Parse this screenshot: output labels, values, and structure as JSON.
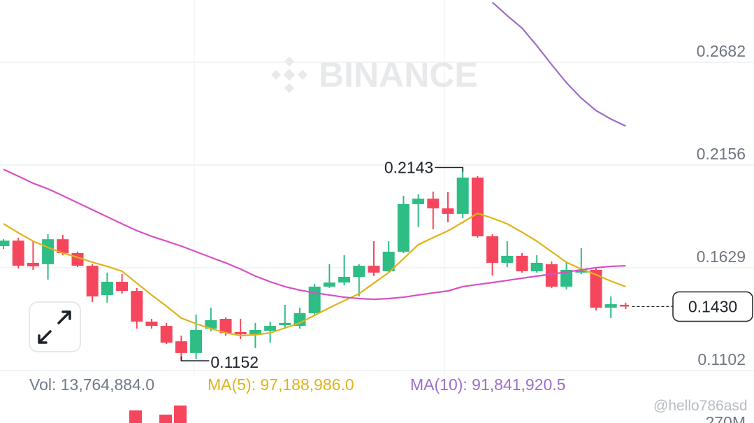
{
  "chart_data": {
    "type": "candlestick",
    "watermark": "BINANCE",
    "up_color": "#2ebd85",
    "down_color": "#f6465d",
    "open": [
      0.174,
      0.1768,
      0.1654,
      0.1647,
      0.1775,
      0.1704,
      0.1639,
      0.1489,
      0.1557,
      0.151,
      0.1353,
      0.1331,
      0.1252,
      0.1192,
      0.1317,
      0.1367,
      0.1299,
      0.1288,
      0.1306,
      0.1335,
      0.1331,
      0.1396,
      0.1532,
      0.1553,
      0.1582,
      0.1639,
      0.1611,
      0.1711,
      0.1955,
      0.1983,
      0.1933,
      0.1905,
      0.2091,
      0.179,
      0.1654,
      0.169,
      0.1611,
      0.1647,
      0.1532,
      0.1604,
      0.1618,
      0.1424,
      0.1439
    ],
    "high": [
      0.1775,
      0.1783,
      0.1765,
      0.1801,
      0.1797,
      0.1711,
      0.1647,
      0.1604,
      0.1596,
      0.1525,
      0.1367,
      0.1346,
      0.1281,
      0.1389,
      0.1424,
      0.1374,
      0.1367,
      0.1346,
      0.1353,
      0.1439,
      0.1424,
      0.1546,
      0.1647,
      0.1693,
      0.1647,
      0.1765,
      0.1765,
      0.1998,
      0.2005,
      0.2019,
      0.2016,
      0.2143,
      0.2098,
      0.1801,
      0.1765,
      0.1704,
      0.1693,
      0.1661,
      0.1661,
      0.1729,
      0.1625,
      0.1482,
      0.145
    ],
    "low": [
      0.1725,
      0.1625,
      0.1618,
      0.1568,
      0.1693,
      0.1632,
      0.1453,
      0.145,
      0.1496,
      0.1317,
      0.1317,
      0.1238,
      0.1152,
      0.116,
      0.1303,
      0.1281,
      0.1263,
      0.1217,
      0.1245,
      0.1317,
      0.1317,
      0.1389,
      0.1525,
      0.1539,
      0.1482,
      0.1586,
      0.1604,
      0.1704,
      0.1837,
      0.1826,
      0.1862,
      0.1883,
      0.1783,
      0.1589,
      0.1632,
      0.1604,
      0.1604,
      0.1525,
      0.1518,
      0.1596,
      0.141,
      0.1371,
      0.1417
    ],
    "close": [
      0.1768,
      0.1639,
      0.1636,
      0.1775,
      0.1704,
      0.1639,
      0.1482,
      0.1557,
      0.151,
      0.1353,
      0.1331,
      0.1245,
      0.1192,
      0.131,
      0.136,
      0.1295,
      0.1288,
      0.131,
      0.1331,
      0.1346,
      0.1396,
      0.1532,
      0.1553,
      0.1582,
      0.1639,
      0.1604,
      0.1711,
      0.1955,
      0.1983,
      0.1933,
      0.1905,
      0.2091,
      0.179,
      0.1654,
      0.169,
      0.1611,
      0.1654,
      0.1532,
      0.1618,
      0.1618,
      0.1424,
      0.1442,
      0.143
    ],
    "lines": [
      {
        "color": "#e0b319",
        "values": [
          0.1854,
          0.1808,
          0.1765,
          0.1733,
          0.1704,
          0.1682,
          0.1657,
          0.1636,
          0.1611,
          0.155,
          0.1489,
          0.1432,
          0.1371,
          0.1342,
          0.1317,
          0.1295,
          0.1281,
          0.1285,
          0.1295,
          0.132,
          0.1346,
          0.1385,
          0.1424,
          0.146,
          0.1496,
          0.155,
          0.1604,
          0.1675,
          0.1747,
          0.1783,
          0.1818,
          0.1862,
          0.1908,
          0.1883,
          0.1854,
          0.1811,
          0.1765,
          0.1711,
          0.1657,
          0.1622,
          0.1593,
          0.156,
          0.1532
        ]
      },
      {
        "color": "#d94fc6",
        "values": [
          0.2133,
          0.2098,
          0.2062,
          0.2033,
          0.1998,
          0.1962,
          0.1926,
          0.189,
          0.1854,
          0.1819,
          0.179,
          0.1765,
          0.174,
          0.1711,
          0.1682,
          0.1654,
          0.1622,
          0.1586,
          0.1557,
          0.1532,
          0.1514,
          0.15,
          0.1489,
          0.1478,
          0.1471,
          0.1467,
          0.1471,
          0.1478,
          0.1489,
          0.15,
          0.151,
          0.1532,
          0.1543,
          0.1553,
          0.1564,
          0.1575,
          0.1586,
          0.1596,
          0.1607,
          0.1618,
          0.1629,
          0.1636,
          0.1639
        ]
      },
      {
        "color": "#9a6ec9",
        "values": [
          null,
          null,
          null,
          null,
          null,
          null,
          null,
          null,
          null,
          null,
          null,
          null,
          null,
          null,
          null,
          null,
          null,
          null,
          null,
          null,
          null,
          null,
          null,
          null,
          null,
          null,
          null,
          null,
          null,
          null,
          null,
          null,
          null,
          0.2989,
          0.2921,
          0.2857,
          0.2767,
          0.267,
          0.2577,
          0.2498,
          0.2434,
          0.2391,
          0.2355
        ]
      }
    ],
    "ylim": [
      0.1084,
      0.3001
    ],
    "yticks": [
      0.1102,
      0.1629,
      0.2156,
      0.2682
    ],
    "grid": true,
    "last_price": {
      "value": 0.143,
      "label": "0.1430"
    },
    "volume_legend": {
      "vol": "Vol: 13,764,884.0",
      "ma5": "MA(5): 97,188,986.0",
      "ma10": "MA(10): 91,841,920.5"
    },
    "volume_axis_label": "270M",
    "user_tag": "@hello786asd"
  }
}
